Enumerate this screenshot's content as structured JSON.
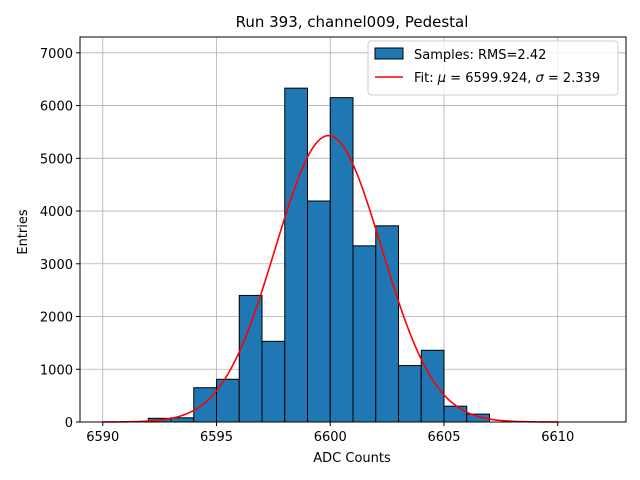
{
  "chart_data": {
    "type": "bar",
    "title": "Run 393, channel009, Pedestal",
    "xlabel": "ADC Counts",
    "ylabel": "Entries",
    "xlim": [
      6589,
      6613
    ],
    "ylim": [
      0,
      7300
    ],
    "x_ticks": [
      6590,
      6595,
      6600,
      6605,
      6610
    ],
    "y_ticks": [
      0,
      1000,
      2000,
      3000,
      4000,
      5000,
      6000,
      7000
    ],
    "grid": true,
    "legend_position": "top-right",
    "bin_edges": [
      6592,
      6593,
      6594,
      6595,
      6596,
      6597,
      6598,
      6599,
      6600,
      6601,
      6602,
      6603,
      6604,
      6605,
      6606,
      6607
    ],
    "counts": [
      70,
      80,
      650,
      810,
      2400,
      1530,
      6330,
      4190,
      6150,
      3340,
      3720,
      1070,
      1360,
      300,
      150
    ],
    "fit": {
      "mu": 6599.924,
      "sigma": 2.339,
      "amplitude": 5430,
      "x_range": [
        6590,
        6610
      ]
    },
    "series": [
      {
        "name": "Samples: RMS=2.42",
        "kind": "histogram",
        "color": "#1f77b4"
      },
      {
        "name_prefix": "Fit: ",
        "name_mu": "μ",
        "name_mid": " = 6599.924, ",
        "name_sigma": "σ",
        "name_suffix": " = 2.339",
        "kind": "line",
        "color": "#ff0000"
      }
    ]
  }
}
